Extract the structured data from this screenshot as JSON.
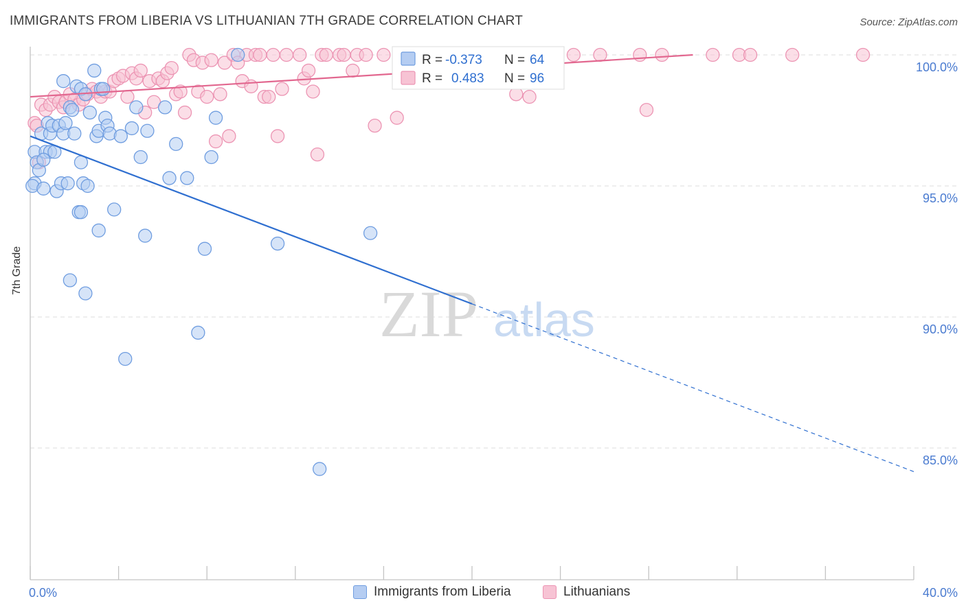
{
  "title": "IMMIGRANTS FROM LIBERIA VS LITHUANIAN 7TH GRADE CORRELATION CHART",
  "source": "Source: ZipAtlas.com",
  "watermark": {
    "zip": "ZIP",
    "atlas": "atlas"
  },
  "colors": {
    "blue_fill": "#b5cdf2",
    "blue_stroke": "#6f9de0",
    "blue_line": "#2f6fd0",
    "pink_fill": "#f7c3d4",
    "pink_stroke": "#ec94b3",
    "pink_line": "#e2678f",
    "grid": "#dedede",
    "tick_text": "#4a7bd0"
  },
  "legend": {
    "rows": [
      {
        "r_label": "R =",
        "r_value": "-0.373",
        "n_label": "N =",
        "n_value": "64"
      },
      {
        "r_label": "R =",
        "r_value": "0.483",
        "n_label": "N =",
        "n_value": "96"
      }
    ]
  },
  "bottom_legend": [
    "Immigrants from Liberia",
    "Lithuanians"
  ],
  "chart_data": {
    "type": "scatter",
    "title": "IMMIGRANTS FROM LIBERIA VS LITHUANIAN 7TH GRADE CORRELATION CHART",
    "xlabel": "",
    "ylabel": "7th Grade",
    "xlim": [
      0,
      40
    ],
    "ylim": [
      80.5,
      100.8
    ],
    "x_tick_labels": [
      "0.0%",
      "40.0%"
    ],
    "y_ticks": [
      85,
      90,
      95,
      100
    ],
    "y_tick_labels": [
      "85.0%",
      "90.0%",
      "95.0%",
      "100.0%"
    ],
    "grid": true,
    "series": [
      {
        "name": "Immigrants from Liberia",
        "R": -0.373,
        "N": 64,
        "trend": {
          "x0": 0,
          "y0": 96.9,
          "x1": 20,
          "y1": 90.5,
          "dashed_to_x": 40,
          "dashed_to_y": 84.1
        },
        "points": [
          [
            0.2,
            96.3
          ],
          [
            0.3,
            95.9
          ],
          [
            0.4,
            95.6
          ],
          [
            0.2,
            95.1
          ],
          [
            0.1,
            95.0
          ],
          [
            0.5,
            97.0
          ],
          [
            0.6,
            94.9
          ],
          [
            0.8,
            97.4
          ],
          [
            0.9,
            97.0
          ],
          [
            1.0,
            97.3
          ],
          [
            0.7,
            96.3
          ],
          [
            0.9,
            96.3
          ],
          [
            1.1,
            96.3
          ],
          [
            1.3,
            97.3
          ],
          [
            1.5,
            97.0
          ],
          [
            1.6,
            97.4
          ],
          [
            1.2,
            94.8
          ],
          [
            1.4,
            95.1
          ],
          [
            1.7,
            95.1
          ],
          [
            1.5,
            99.0
          ],
          [
            1.8,
            98.0
          ],
          [
            1.9,
            97.9
          ],
          [
            2.0,
            97.0
          ],
          [
            2.1,
            98.8
          ],
          [
            2.3,
            98.7
          ],
          [
            2.3,
            95.9
          ],
          [
            2.4,
            95.1
          ],
          [
            2.6,
            95.0
          ],
          [
            2.2,
            94.0
          ],
          [
            2.3,
            94.0
          ],
          [
            2.5,
            98.5
          ],
          [
            2.7,
            97.8
          ],
          [
            2.9,
            99.4
          ],
          [
            3.0,
            96.9
          ],
          [
            3.1,
            97.1
          ],
          [
            3.2,
            98.7
          ],
          [
            3.3,
            98.7
          ],
          [
            3.4,
            97.6
          ],
          [
            3.5,
            97.3
          ],
          [
            3.6,
            97.0
          ],
          [
            3.1,
            93.3
          ],
          [
            3.8,
            94.1
          ],
          [
            4.1,
            96.9
          ],
          [
            4.6,
            97.2
          ],
          [
            4.8,
            98.0
          ],
          [
            5.0,
            96.1
          ],
          [
            5.2,
            93.1
          ],
          [
            5.3,
            97.1
          ],
          [
            6.1,
            98.0
          ],
          [
            6.3,
            95.3
          ],
          [
            6.6,
            96.6
          ],
          [
            7.1,
            95.3
          ],
          [
            7.6,
            89.4
          ],
          [
            7.9,
            92.6
          ],
          [
            8.2,
            96.1
          ],
          [
            8.4,
            97.6
          ],
          [
            9.4,
            100.0
          ],
          [
            11.2,
            92.8
          ],
          [
            15.4,
            93.2
          ],
          [
            1.8,
            91.4
          ],
          [
            2.5,
            90.9
          ],
          [
            4.3,
            88.4
          ],
          [
            13.1,
            84.2
          ],
          [
            0.6,
            96.0
          ]
        ]
      },
      {
        "name": "Lithuanians",
        "R": 0.483,
        "N": 96,
        "trend": {
          "x0": 0,
          "y0": 98.4,
          "x1": 30,
          "y1": 100.0
        },
        "points": [
          [
            0.2,
            97.4
          ],
          [
            0.4,
            95.9
          ],
          [
            0.5,
            98.1
          ],
          [
            0.7,
            97.9
          ],
          [
            0.9,
            98.1
          ],
          [
            1.1,
            98.4
          ],
          [
            1.3,
            98.2
          ],
          [
            1.5,
            98.0
          ],
          [
            1.6,
            98.2
          ],
          [
            1.8,
            98.5
          ],
          [
            2.0,
            98.3
          ],
          [
            2.2,
            98.1
          ],
          [
            2.4,
            98.3
          ],
          [
            2.6,
            98.5
          ],
          [
            2.8,
            98.7
          ],
          [
            3.0,
            98.6
          ],
          [
            3.2,
            98.4
          ],
          [
            3.4,
            98.6
          ],
          [
            3.6,
            98.6
          ],
          [
            3.8,
            99.0
          ],
          [
            4.0,
            99.1
          ],
          [
            4.2,
            99.2
          ],
          [
            4.4,
            98.4
          ],
          [
            4.6,
            99.3
          ],
          [
            4.8,
            99.1
          ],
          [
            5.0,
            99.4
          ],
          [
            5.2,
            97.8
          ],
          [
            5.4,
            99.0
          ],
          [
            5.6,
            98.2
          ],
          [
            5.8,
            99.1
          ],
          [
            6.0,
            99.0
          ],
          [
            6.2,
            99.3
          ],
          [
            6.4,
            99.5
          ],
          [
            6.6,
            98.5
          ],
          [
            6.8,
            98.6
          ],
          [
            7.0,
            97.8
          ],
          [
            7.2,
            100.0
          ],
          [
            7.4,
            99.8
          ],
          [
            7.6,
            98.6
          ],
          [
            7.8,
            99.7
          ],
          [
            8.0,
            98.4
          ],
          [
            8.2,
            99.8
          ],
          [
            8.4,
            96.7
          ],
          [
            8.6,
            98.5
          ],
          [
            8.8,
            99.7
          ],
          [
            9.0,
            96.9
          ],
          [
            9.2,
            100.0
          ],
          [
            9.4,
            99.7
          ],
          [
            9.6,
            99.0
          ],
          [
            9.8,
            100.0
          ],
          [
            10.0,
            98.8
          ],
          [
            10.2,
            100.0
          ],
          [
            10.4,
            100.0
          ],
          [
            10.6,
            98.4
          ],
          [
            10.8,
            98.4
          ],
          [
            11.0,
            100.0
          ],
          [
            11.2,
            96.9
          ],
          [
            11.4,
            98.7
          ],
          [
            11.6,
            100.0
          ],
          [
            12.2,
            100.0
          ],
          [
            12.4,
            99.1
          ],
          [
            12.6,
            99.4
          ],
          [
            12.8,
            98.6
          ],
          [
            13.0,
            96.2
          ],
          [
            13.2,
            100.0
          ],
          [
            13.4,
            100.0
          ],
          [
            14.0,
            100.0
          ],
          [
            14.2,
            100.0
          ],
          [
            14.6,
            99.4
          ],
          [
            14.8,
            100.0
          ],
          [
            15.2,
            100.0
          ],
          [
            15.6,
            97.3
          ],
          [
            16.0,
            100.0
          ],
          [
            16.6,
            97.6
          ],
          [
            17.2,
            100.0
          ],
          [
            18.0,
            100.0
          ],
          [
            18.8,
            100.0
          ],
          [
            19.6,
            100.0
          ],
          [
            20.4,
            100.0
          ],
          [
            21.0,
            100.0
          ],
          [
            21.6,
            100.0
          ],
          [
            22.0,
            98.5
          ],
          [
            22.6,
            98.4
          ],
          [
            23.2,
            100.0
          ],
          [
            23.8,
            100.0
          ],
          [
            24.6,
            100.0
          ],
          [
            25.8,
            100.0
          ],
          [
            27.6,
            100.0
          ],
          [
            27.9,
            97.9
          ],
          [
            28.6,
            100.0
          ],
          [
            30.9,
            100.0
          ],
          [
            32.1,
            100.0
          ],
          [
            32.6,
            100.0
          ],
          [
            34.5,
            100.0
          ],
          [
            37.7,
            100.0
          ],
          [
            0.3,
            97.3
          ]
        ]
      }
    ]
  }
}
